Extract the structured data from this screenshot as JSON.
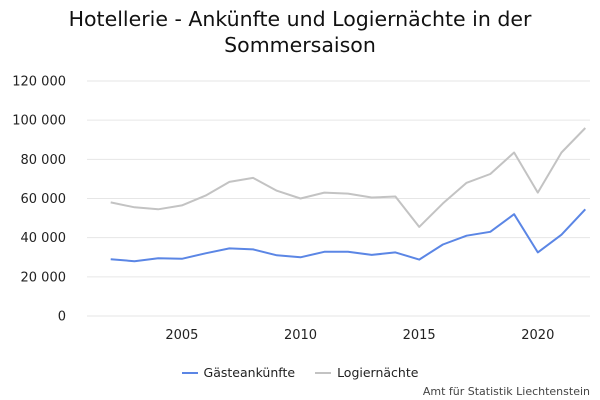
{
  "chart_data": {
    "type": "line",
    "title_line1": "Hotellerie - Ankünfte und Logiernächte in der",
    "title_line2": "Sommersaison",
    "xlabel": "",
    "ylabel": "",
    "x": [
      2002,
      2003,
      2004,
      2005,
      2006,
      2007,
      2008,
      2009,
      2010,
      2011,
      2012,
      2013,
      2014,
      2015,
      2016,
      2017,
      2018,
      2019,
      2020,
      2021,
      2022
    ],
    "xlim": [
      2001,
      2022.2
    ],
    "ylim": [
      0,
      120000
    ],
    "x_ticks": [
      2005,
      2010,
      2015,
      2020
    ],
    "x_tick_labels": [
      "2005",
      "2010",
      "2015",
      "2020"
    ],
    "y_ticks": [
      0,
      20000,
      40000,
      60000,
      80000,
      100000,
      120000
    ],
    "y_tick_labels": [
      "0",
      "20 000",
      "40 000",
      "60 000",
      "80 000",
      "100 000",
      "120 000"
    ],
    "grid": true,
    "legend_position": "bottom",
    "series": [
      {
        "name": "Gästeankünfte",
        "color": "#5b86e5",
        "values": [
          29000,
          28000,
          29500,
          29200,
          32000,
          34500,
          34000,
          31000,
          30000,
          32800,
          32800,
          31200,
          32500,
          28800,
          36500,
          41000,
          43000,
          52000,
          32500,
          41500,
          54500
        ]
      },
      {
        "name": "Logiernächte",
        "color": "#c3c3c3",
        "values": [
          58000,
          55500,
          54500,
          56500,
          61500,
          68500,
          70500,
          64000,
          60000,
          63000,
          62500,
          60500,
          61000,
          45500,
          57500,
          68000,
          72500,
          83500,
          63000,
          83500,
          96000
        ]
      }
    ]
  },
  "source": "Amt für Statistik Liechtenstein"
}
